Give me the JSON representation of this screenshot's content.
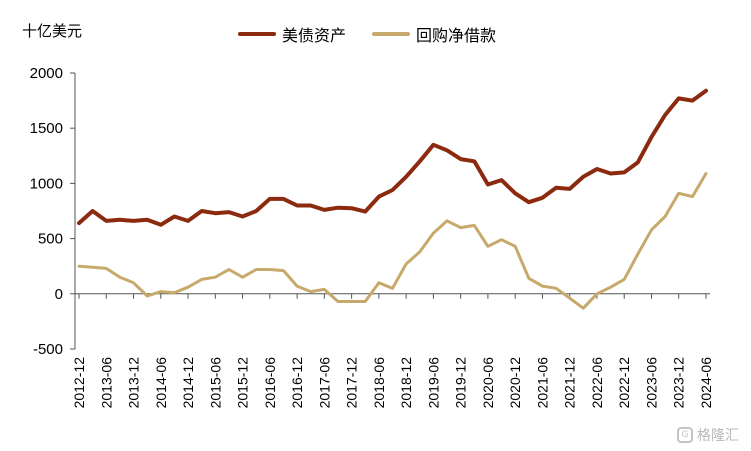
{
  "unit_label": "十亿美元",
  "watermark": {
    "text": "格隆汇",
    "icon": "gelonghui-logo-icon"
  },
  "chart_data": {
    "type": "line",
    "ylim": [
      -500,
      2000
    ],
    "yticks": [
      -500,
      0,
      500,
      1000,
      1500,
      2000
    ],
    "x": [
      "2012-12",
      "2013-03",
      "2013-06",
      "2013-09",
      "2013-12",
      "2014-03",
      "2014-06",
      "2014-09",
      "2014-12",
      "2015-03",
      "2015-06",
      "2015-09",
      "2015-12",
      "2016-03",
      "2016-06",
      "2016-09",
      "2016-12",
      "2017-03",
      "2017-06",
      "2017-09",
      "2017-12",
      "2018-03",
      "2018-06",
      "2018-09",
      "2018-12",
      "2019-03",
      "2019-06",
      "2019-09",
      "2019-12",
      "2020-03",
      "2020-06",
      "2020-09",
      "2020-12",
      "2021-03",
      "2021-06",
      "2021-09",
      "2021-12",
      "2022-03",
      "2022-06",
      "2022-09",
      "2022-12",
      "2023-03",
      "2023-06",
      "2023-09",
      "2023-12",
      "2024-03",
      "2024-06"
    ],
    "xticks": [
      "2012-12",
      "2013-06",
      "2013-12",
      "2014-06",
      "2014-12",
      "2015-06",
      "2015-12",
      "2016-06",
      "2016-12",
      "2017-06",
      "2017-12",
      "2018-06",
      "2018-12",
      "2019-06",
      "2019-12",
      "2020-06",
      "2020-12",
      "2021-06",
      "2021-12",
      "2022-06",
      "2022-12",
      "2023-06",
      "2023-12",
      "2024-06"
    ],
    "series": [
      {
        "name": "美债资产",
        "color": "#8b2a0e",
        "values": [
          640,
          750,
          660,
          670,
          660,
          670,
          625,
          700,
          660,
          750,
          730,
          740,
          700,
          750,
          860,
          860,
          800,
          800,
          760,
          780,
          775,
          745,
          880,
          940,
          1060,
          1200,
          1350,
          1300,
          1220,
          1200,
          990,
          1030,
          910,
          830,
          870,
          960,
          950,
          1060,
          1130,
          1090,
          1100,
          1190,
          1420,
          1620,
          1770,
          1750,
          1840
        ]
      },
      {
        "name": "回购净借款",
        "color": "#c7a96b",
        "values": [
          250,
          240,
          230,
          150,
          100,
          -20,
          20,
          10,
          60,
          130,
          150,
          220,
          150,
          220,
          220,
          210,
          70,
          20,
          40,
          -70,
          -70,
          -70,
          100,
          50,
          270,
          380,
          550,
          660,
          600,
          620,
          430,
          490,
          430,
          140,
          70,
          50,
          -40,
          -130,
          0,
          60,
          130,
          360,
          580,
          700,
          910,
          880,
          1090
        ]
      }
    ]
  }
}
